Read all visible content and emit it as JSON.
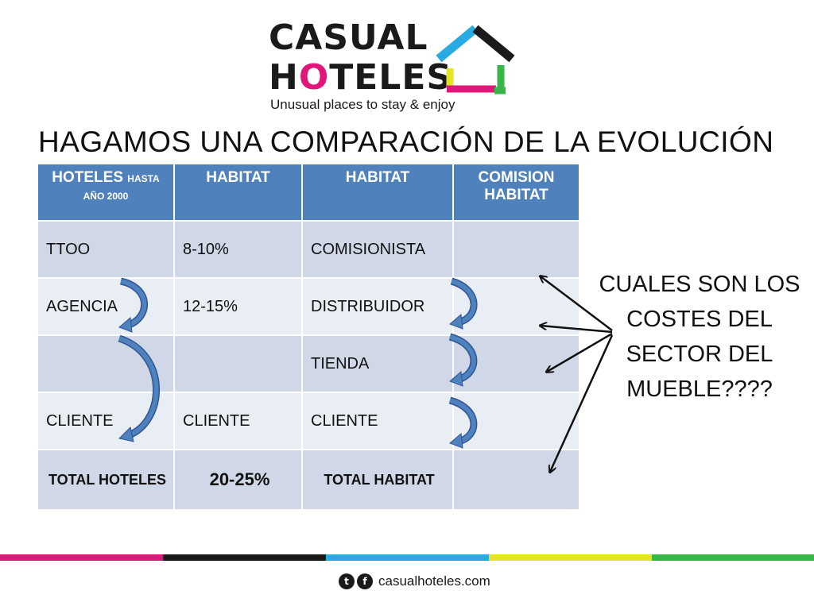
{
  "logo": {
    "line1": "CASUAL",
    "line2_pre": "H",
    "line2_o": "O",
    "line2_post": "TELES",
    "tagline": "Unusual places to stay & enjoy",
    "colors": {
      "cyan": "#29abe2",
      "black": "#1a1a1a",
      "magenta": "#e0177a",
      "yellow": "#e5e526",
      "green": "#39b54a"
    }
  },
  "title": "HAGAMOS UNA COMPARACIÓN DE LA EVOLUCIÓN",
  "table": {
    "header": {
      "col1_main": "HOTELES",
      "col1_small": "HASTA AÑO 2000",
      "col2": "HABITAT",
      "col3": "HABITAT",
      "col4": "COMISION HABITAT"
    },
    "rows": [
      {
        "c1": "TTOO",
        "c2": "8-10%",
        "c3": "COMISIONISTA",
        "c4": ""
      },
      {
        "c1": "AGENCIA",
        "c2": "12-15%",
        "c3": "DISTRIBUIDOR",
        "c4": ""
      },
      {
        "c1": "",
        "c2": "",
        "c3": "TIENDA",
        "c4": ""
      },
      {
        "c1": "CLIENTE",
        "c2": "CLIENTE",
        "c3": "CLIENTE",
        "c4": ""
      }
    ],
    "total": {
      "c1": "TOTAL HOTELES",
      "c2": "20-25%",
      "c3": "TOTAL HABITAT",
      "c4": ""
    }
  },
  "question": "CUALES SON LOS COSTES DEL SECTOR DEL MUEBLE????",
  "footer": {
    "social": [
      "twitter-icon",
      "facebook-icon"
    ],
    "twitter_glyph": "t",
    "facebook_glyph": "f",
    "site": "casualhoteles.com",
    "bar_colors": [
      "#e0177a",
      "#1a1a1a",
      "#29abe2",
      "#e5e526",
      "#39b54a"
    ]
  },
  "colors": {
    "header_blue": "#4f81bd",
    "row_dark": "#d0d8e8",
    "row_light": "#e9edf4",
    "arrow_blue": "#4f81bd"
  }
}
